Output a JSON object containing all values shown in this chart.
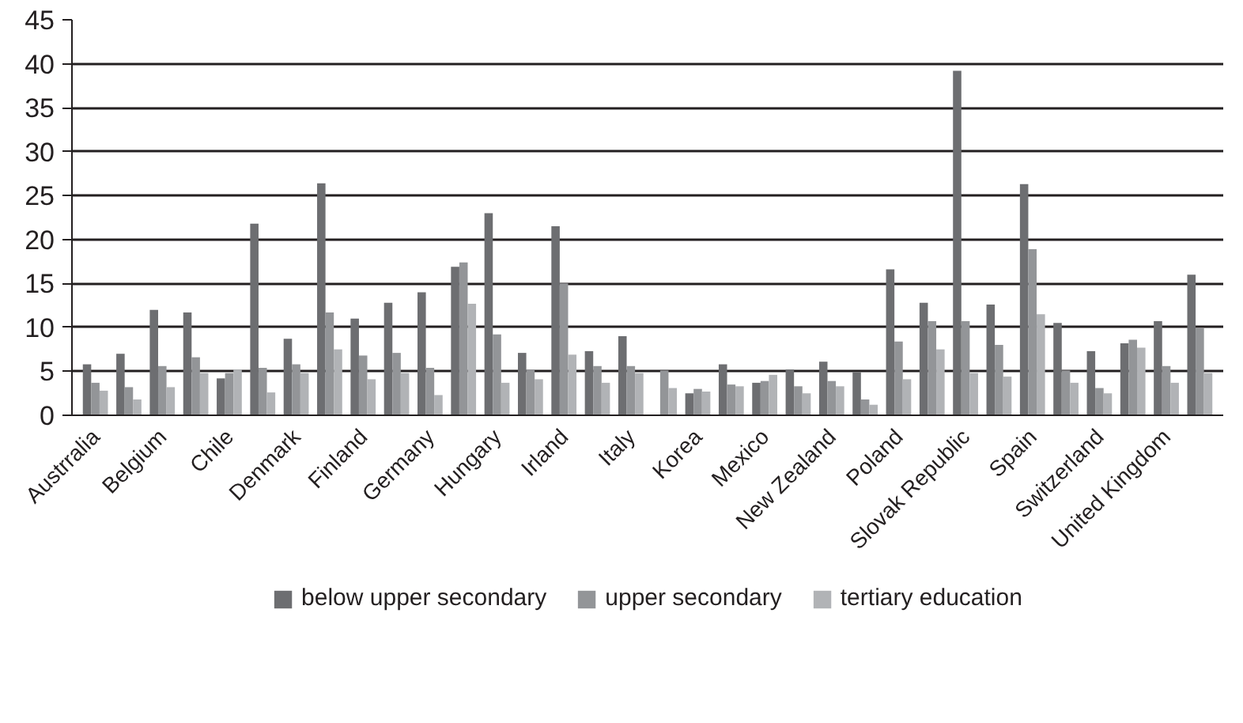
{
  "chart_data": {
    "type": "bar",
    "categories": [
      "Austrralia",
      null,
      "Belgium",
      null,
      "Chile",
      null,
      "Denmark",
      null,
      "Finland",
      null,
      "Germany",
      null,
      "Hungary",
      null,
      "Irland",
      null,
      "Italy",
      null,
      "Korea",
      null,
      "Mexico",
      null,
      "New Zealand",
      null,
      "Poland",
      null,
      "Slovak Republic",
      null,
      "Spain",
      null,
      "Switzerland",
      null,
      "United Kingdom",
      null
    ],
    "series": [
      {
        "name": "below upper secondary",
        "color": "#6d6e71",
        "values": [
          5.8,
          7.0,
          12.0,
          11.7,
          4.2,
          21.8,
          8.7,
          26.4,
          11.0,
          12.8,
          14.0,
          16.9,
          23.0,
          7.1,
          21.5,
          7.3,
          9.0,
          null,
          2.5,
          5.8,
          3.7,
          5.2,
          6.1,
          4.9,
          16.6,
          12.8,
          39.2,
          12.6,
          26.3,
          10.5,
          7.3,
          8.2,
          10.7,
          16.0
        ]
      },
      {
        "name": "upper secondary",
        "color": "#939598",
        "values": [
          3.7,
          3.2,
          5.6,
          6.6,
          4.8,
          5.4,
          5.8,
          11.7,
          6.8,
          7.1,
          5.4,
          17.4,
          9.2,
          5.2,
          15.0,
          5.6,
          5.6,
          5.1,
          3.0,
          3.5,
          3.9,
          3.3,
          3.9,
          1.8,
          8.4,
          10.7,
          10.7,
          8.0,
          18.9,
          5.1,
          3.1,
          8.6,
          5.6,
          9.9
        ]
      },
      {
        "name": "tertiary education",
        "color": "#b1b3b6",
        "values": [
          2.8,
          1.8,
          3.2,
          4.8,
          5.2,
          2.6,
          4.8,
          7.5,
          4.1,
          4.8,
          2.3,
          12.7,
          3.7,
          4.1,
          6.9,
          3.7,
          4.8,
          3.1,
          2.7,
          3.3,
          4.6,
          2.5,
          3.3,
          1.2,
          4.1,
          7.5,
          4.8,
          4.4,
          11.5,
          3.7,
          2.5,
          7.7,
          3.7,
          4.8
        ]
      }
    ],
    "ylim": [
      0,
      45
    ],
    "yticks": [
      0,
      5,
      10,
      15,
      20,
      25,
      30,
      35,
      40,
      45
    ],
    "grid": "y",
    "legend": "bottom"
  }
}
